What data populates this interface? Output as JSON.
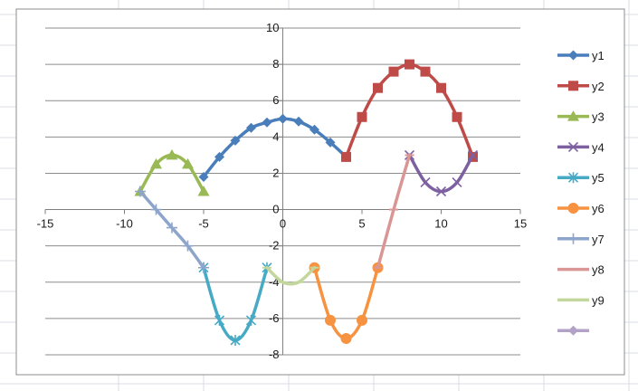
{
  "chart_data": {
    "type": "line",
    "title": "",
    "xlabel": "",
    "ylabel": "",
    "xlim": [
      -15,
      15
    ],
    "ylim": [
      -8,
      10
    ],
    "x_ticks": [
      "-15",
      "-10",
      "-5",
      "0",
      "5",
      "10",
      "15"
    ],
    "y_ticks": [
      "-8",
      "-6",
      "-4",
      "-2",
      "0",
      "2",
      "4",
      "6",
      "8",
      "10"
    ],
    "grid": "horizontal major gridlines",
    "legend_position": "right",
    "series": [
      {
        "name": "y1",
        "color": "#4a7ebb",
        "marker": "diamond",
        "x": [
          -5,
          -4,
          -3,
          -2,
          -1,
          0,
          1,
          2,
          3,
          4
        ],
        "y": [
          1.8,
          2.9,
          3.8,
          4.5,
          4.8,
          5.0,
          4.85,
          4.4,
          3.7,
          2.9
        ]
      },
      {
        "name": "y2",
        "color": "#be4b48",
        "marker": "square",
        "x": [
          4,
          5,
          6,
          7,
          8,
          9,
          10,
          11,
          12
        ],
        "y": [
          2.9,
          5.1,
          6.7,
          7.6,
          8.0,
          7.6,
          6.7,
          5.1,
          2.9
        ]
      },
      {
        "name": "y3",
        "color": "#98b954",
        "marker": "triangle",
        "x": [
          -9,
          -8,
          -7,
          -6,
          -5
        ],
        "y": [
          1.0,
          2.5,
          3.0,
          2.5,
          1.0
        ]
      },
      {
        "name": "y4",
        "color": "#7d60a0",
        "marker": "x",
        "x": [
          8,
          9,
          10,
          11,
          12
        ],
        "y": [
          3.0,
          1.5,
          1.0,
          1.5,
          3.0
        ]
      },
      {
        "name": "y5",
        "color": "#46aac5",
        "marker": "asterisk",
        "x": [
          -5,
          -4,
          -3,
          -2,
          -1
        ],
        "y": [
          -3.2,
          -6.1,
          -7.2,
          -6.1,
          -3.2
        ]
      },
      {
        "name": "y6",
        "color": "#f69240",
        "marker": "circle",
        "x": [
          2,
          3,
          4,
          5,
          6
        ],
        "y": [
          -3.2,
          -6.1,
          -7.1,
          -6.1,
          -3.2
        ]
      },
      {
        "name": "y7",
        "color": "#8ea5cb",
        "marker": "plus",
        "x": [
          -9,
          -8,
          -7,
          -6,
          -5
        ],
        "y": [
          1.0,
          0.0,
          -1.0,
          -2.0,
          -3.2
        ]
      },
      {
        "name": "y8",
        "color": "#d99694",
        "marker": "dash",
        "x": [
          6,
          7,
          8
        ],
        "y": [
          -3.2,
          0.0,
          3.0
        ]
      },
      {
        "name": "y9",
        "color": "#c3d69b",
        "marker": "dash",
        "x": [
          -1,
          0,
          1,
          2
        ],
        "y": [
          -3.2,
          -4.0,
          -4.0,
          -3.2
        ]
      },
      {
        "name": "",
        "color": "#b3a2c7",
        "marker": "diamond",
        "x": [],
        "y": []
      }
    ]
  }
}
